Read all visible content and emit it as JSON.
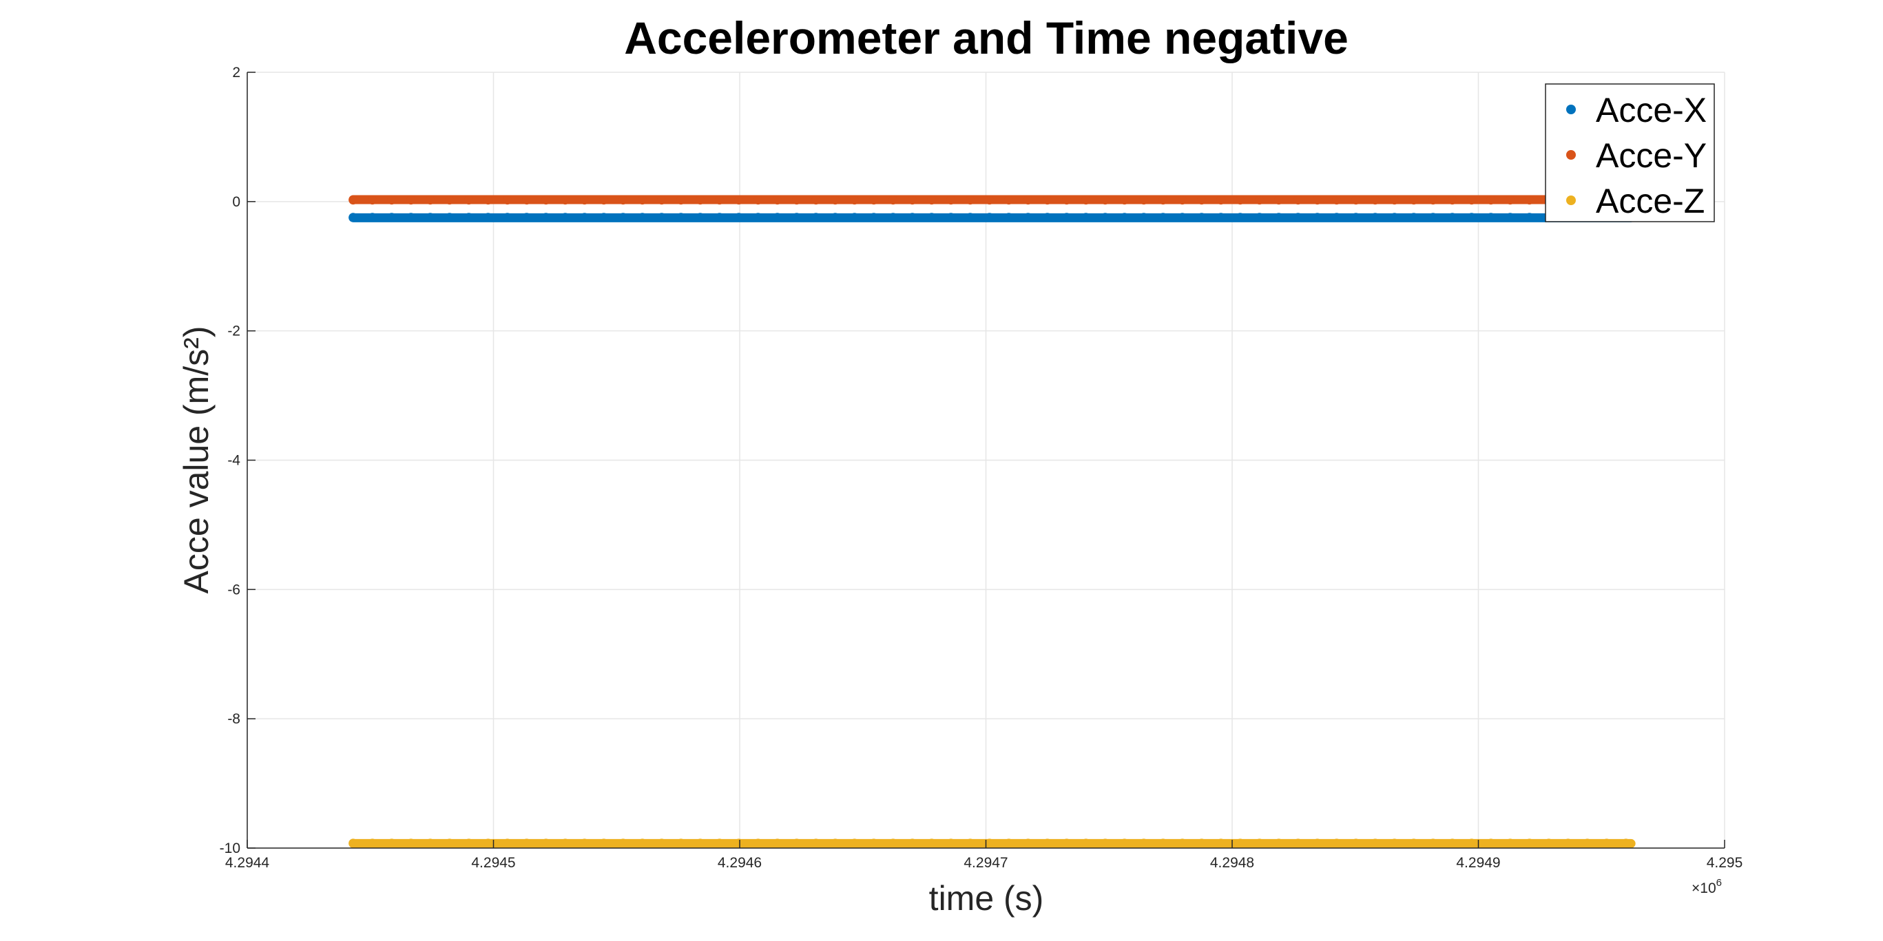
{
  "chart_data": {
    "type": "scatter",
    "title": "Accelerometer and Time negative",
    "xlabel": "time (s)",
    "ylabel": "Acce value (m/s²)",
    "xlim": [
      4294400,
      4295000
    ],
    "ylim": [
      -10,
      2
    ],
    "x_ticks": [
      4294400,
      4294500,
      4294600,
      4294700,
      4294800,
      4294900,
      4295000
    ],
    "x_tick_labels": [
      "4.2944",
      "4.2945",
      "4.2946",
      "4.2947",
      "4.2948",
      "4.2949",
      "4.295"
    ],
    "x_exponent_label": "×10",
    "x_exponent_power": "6",
    "y_ticks": [
      2,
      0,
      -2,
      -4,
      -6,
      -8,
      -10
    ],
    "y_tick_labels": [
      "2",
      "0",
      "-2",
      "-4",
      "-6",
      "-8",
      "-10"
    ],
    "grid": true,
    "legend_position": "top-right",
    "series": [
      {
        "name": "Acce-X",
        "color": "#0072BD",
        "x_start": 4294443,
        "x_end": 4294962,
        "value": -0.25
      },
      {
        "name": "Acce-Y",
        "color": "#D95319",
        "x_start": 4294443,
        "x_end": 4294962,
        "value": 0.03
      },
      {
        "name": "Acce-Z",
        "color": "#EDB120",
        "x_start": 4294443,
        "x_end": 4294962,
        "value": -9.93
      }
    ]
  }
}
